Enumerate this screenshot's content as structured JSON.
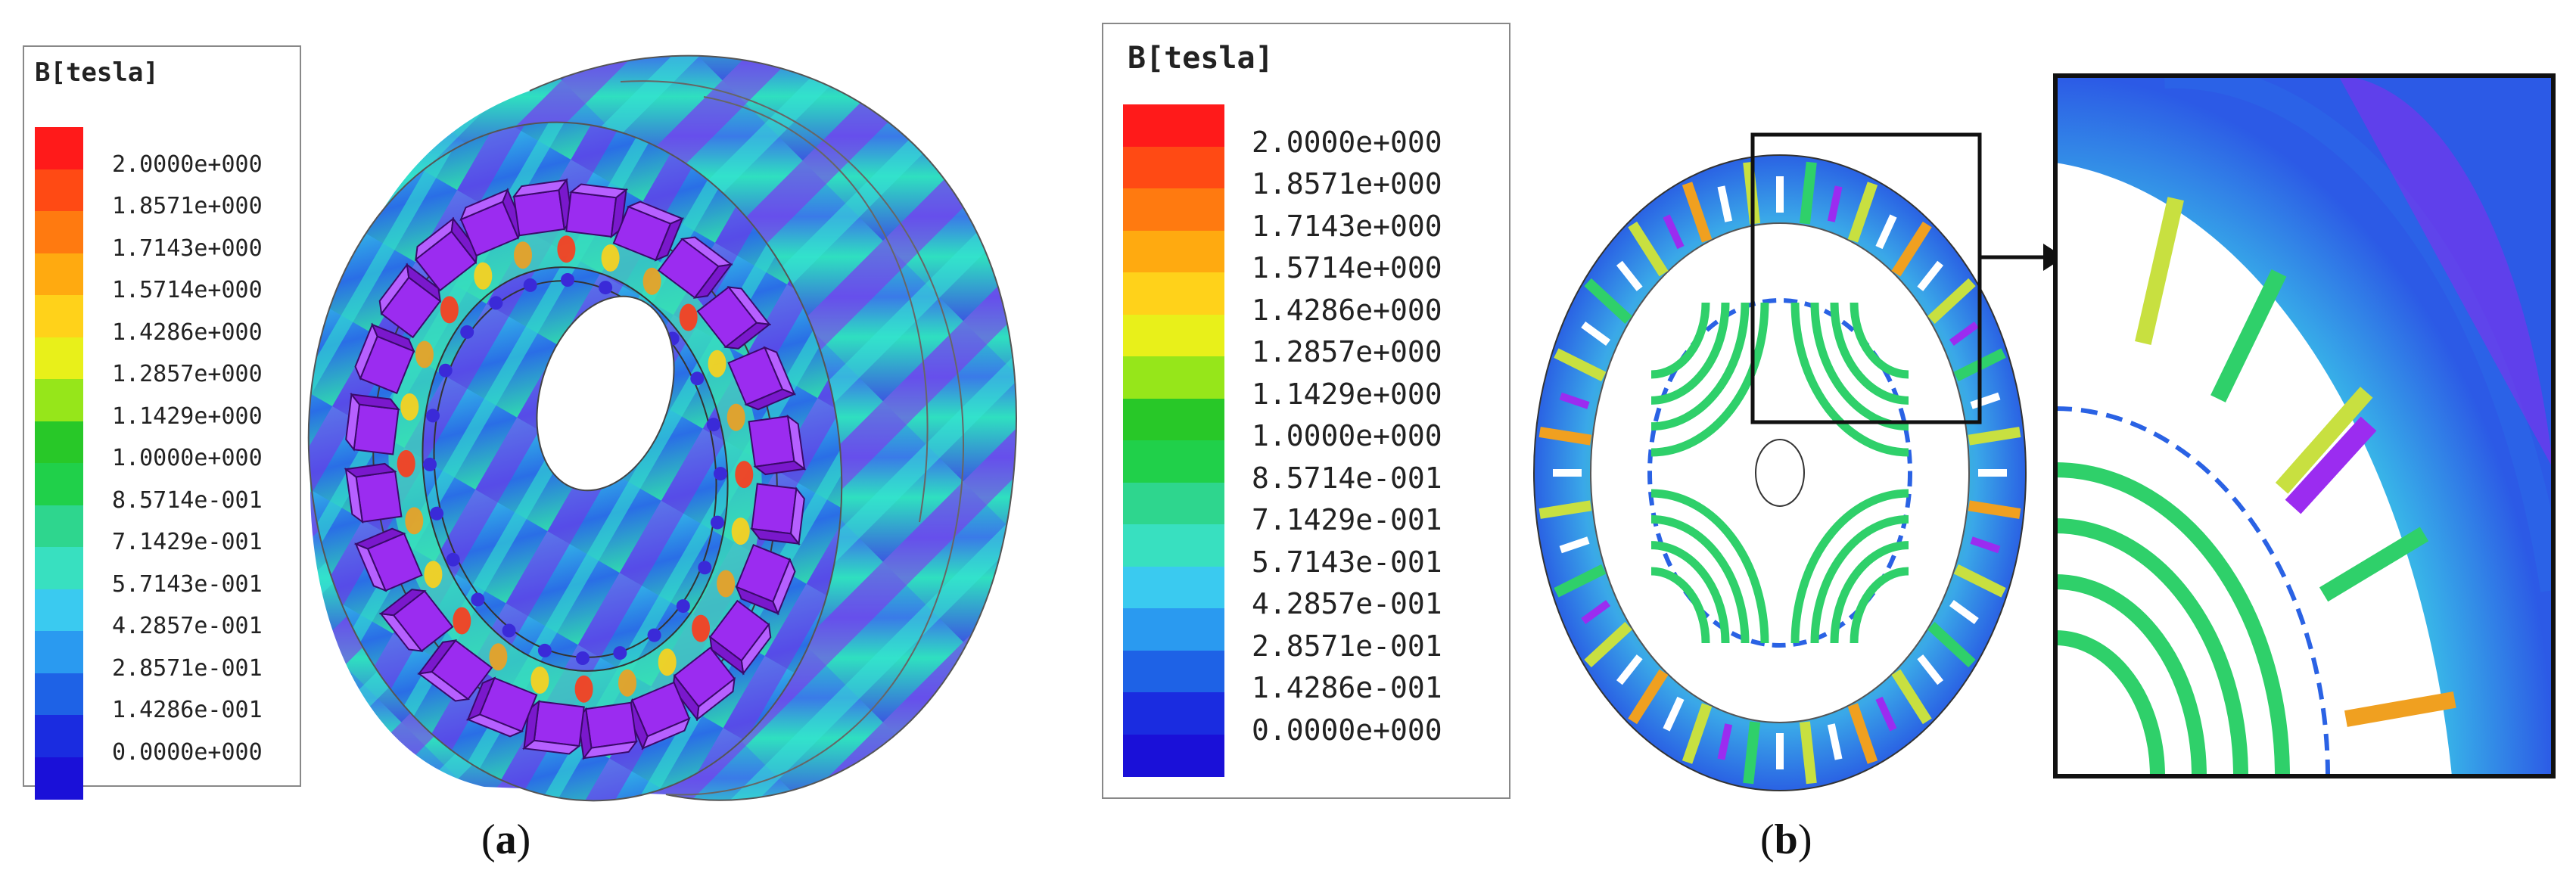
{
  "legend_a": {
    "title": "B[tesla]",
    "ticks": [
      "2.0000e+000",
      "1.8571e+000",
      "1.7143e+000",
      "1.5714e+000",
      "1.4286e+000",
      "1.2857e+000",
      "1.1429e+000",
      "1.0000e+000",
      "8.5714e-001",
      "7.1429e-001",
      "5.7143e-001",
      "4.2857e-001",
      "2.8571e-001",
      "1.4286e-001",
      "0.0000e+000"
    ]
  },
  "legend_b": {
    "title": "B[tesla]",
    "ticks": [
      "2.0000e+000",
      "1.8571e+000",
      "1.7143e+000",
      "1.5714e+000",
      "1.4286e+000",
      "1.2857e+000",
      "1.1429e+000",
      "1.0000e+000",
      "8.5714e-001",
      "7.1429e-001",
      "5.7143e-001",
      "4.2857e-001",
      "2.8571e-001",
      "1.4286e-001",
      "0.0000e+000"
    ]
  },
  "colorscale": [
    "#ff1a1a",
    "#ff4a14",
    "#ff7a10",
    "#ffaa10",
    "#ffd21a",
    "#e8f01a",
    "#96e61a",
    "#28c828",
    "#20d04a",
    "#2ed68e",
    "#38e0c0",
    "#3acaf0",
    "#2a9af0",
    "#1e62e6",
    "#1a2ce0",
    "#1a10d8"
  ],
  "captions": {
    "a": "a",
    "b": "b"
  },
  "colors": {
    "magnet": "#9b2cf0",
    "ring_blue": "#2c6ae8",
    "green": "#2fd06a",
    "yellow": "#c8e040",
    "orange": "#f0a020"
  }
}
